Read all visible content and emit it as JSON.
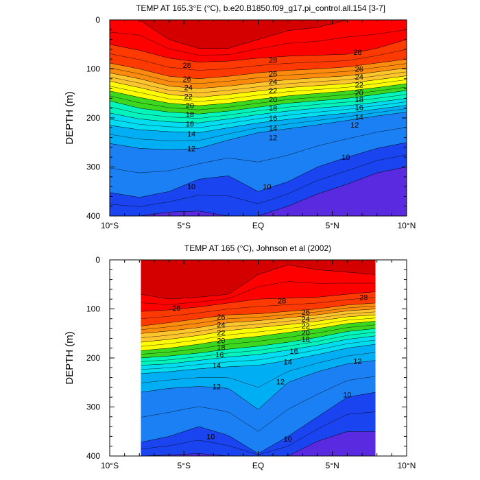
{
  "chart_data": [
    {
      "type": "contour",
      "title": "TEMP AT 165.3°E (°C), b.e20.B1850.f09_g17.pi_control.all.154 [3-7]",
      "ylabel": "DEPTH (m)",
      "xlabel": "",
      "xlim": [
        -10,
        10
      ],
      "ylim": [
        0,
        400
      ],
      "y_inverted": true,
      "x_ticks": [
        {
          "v": -10,
          "label": "10°S"
        },
        {
          "v": -5,
          "label": "5°S"
        },
        {
          "v": 0,
          "label": "EQ"
        },
        {
          "v": 5,
          "label": "5°N"
        },
        {
          "v": 10,
          "label": "10°N"
        }
      ],
      "y_ticks": [
        0,
        100,
        200,
        300,
        400
      ],
      "levels": [
        9,
        10,
        11,
        12,
        13,
        14,
        15,
        16,
        17,
        18,
        19,
        20,
        21,
        22,
        23,
        24,
        25,
        26,
        27,
        28,
        29
      ],
      "data_extent": [
        -10,
        10
      ],
      "isotherms": {
        "x": [
          -10,
          -8,
          -6,
          -4,
          -2,
          0,
          2,
          4,
          6,
          8,
          10
        ],
        "lines": [
          {
            "t": 29,
            "depth": [
              0,
              0,
              40,
              58,
              58,
              40,
              22,
              15,
              0,
              0,
              0
            ]
          },
          {
            "t": 28,
            "depth": [
              50,
              62,
              78,
              86,
              84,
              78,
              74,
              72,
              70,
              58,
              40
            ]
          },
          {
            "t": 26,
            "depth": [
              88,
              100,
              115,
              120,
              115,
              108,
              103,
              100,
              96,
              88,
              80
            ]
          },
          {
            "t": 24,
            "depth": [
              108,
              120,
              135,
              140,
              135,
              128,
              122,
              118,
              114,
              106,
              98
            ]
          },
          {
            "t": 22,
            "depth": [
              125,
              138,
              152,
              158,
              152,
              145,
              138,
              134,
              130,
              122,
              114
            ]
          },
          {
            "t": 20,
            "depth": [
              145,
              158,
              170,
              175,
              170,
              162,
              155,
              150,
              145,
              138,
              130
            ]
          },
          {
            "t": 18,
            "depth": [
              165,
              180,
              188,
              192,
              186,
              178,
              170,
              165,
              160,
              152,
              144
            ]
          },
          {
            "t": 16,
            "depth": [
              190,
              202,
              208,
              210,
              202,
              193,
              186,
              180,
              175,
              168,
              160
            ]
          },
          {
            "t": 14,
            "depth": [
              215,
              224,
              228,
              230,
              220,
              210,
              203,
              196,
              190,
              182,
              174
            ]
          },
          {
            "t": 12,
            "depth": [
              252,
              262,
              265,
              262,
              245,
              230,
              222,
              214,
              205,
              196,
              188
            ]
          },
          {
            "t": 10,
            "depth": [
              352,
              362,
              350,
              325,
              318,
              350,
              330,
              300,
              280,
              262,
              250
            ]
          },
          {
            "t": 9,
            "depth": [
              400,
              400,
              392,
              390,
              400,
              400,
              380,
              355,
              335,
              312,
              300
            ]
          }
        ]
      },
      "contour_labels": [
        {
          "x": -4.8,
          "d": 92,
          "text": "28"
        },
        {
          "x": 1.0,
          "d": 82,
          "text": "28"
        },
        {
          "x": 6.7,
          "d": 66,
          "text": "28"
        },
        {
          "x": -4.8,
          "d": 120,
          "text": "26"
        },
        {
          "x": 1.0,
          "d": 110,
          "text": "26"
        },
        {
          "x": 6.8,
          "d": 100,
          "text": "26"
        },
        {
          "x": -4.7,
          "d": 138,
          "text": "24"
        },
        {
          "x": 1.0,
          "d": 126,
          "text": "24"
        },
        {
          "x": 6.8,
          "d": 116,
          "text": "24"
        },
        {
          "x": -4.7,
          "d": 156,
          "text": "22"
        },
        {
          "x": 1.0,
          "d": 144,
          "text": "22"
        },
        {
          "x": 6.8,
          "d": 132,
          "text": "22"
        },
        {
          "x": -4.6,
          "d": 174,
          "text": "20"
        },
        {
          "x": 1.0,
          "d": 162,
          "text": "20"
        },
        {
          "x": 6.8,
          "d": 148,
          "text": "20"
        },
        {
          "x": -4.6,
          "d": 192,
          "text": "18"
        },
        {
          "x": 1.0,
          "d": 180,
          "text": "18"
        },
        {
          "x": 6.8,
          "d": 162,
          "text": "18"
        },
        {
          "x": -4.6,
          "d": 212,
          "text": "16"
        },
        {
          "x": 1.0,
          "d": 200,
          "text": "16"
        },
        {
          "x": 6.8,
          "d": 178,
          "text": "16"
        },
        {
          "x": -4.5,
          "d": 232,
          "text": "14"
        },
        {
          "x": 1.0,
          "d": 220,
          "text": "14"
        },
        {
          "x": 6.8,
          "d": 198,
          "text": "14"
        },
        {
          "x": -4.5,
          "d": 262,
          "text": "12"
        },
        {
          "x": 1.0,
          "d": 240,
          "text": "12"
        },
        {
          "x": 6.5,
          "d": 214,
          "text": "12"
        },
        {
          "x": -4.5,
          "d": 340,
          "text": "10"
        },
        {
          "x": 0.6,
          "d": 340,
          "text": "10"
        },
        {
          "x": 5.9,
          "d": 280,
          "text": "10"
        }
      ]
    },
    {
      "type": "contour",
      "title": "TEMP AT 165 (°C), Johnson et al (2002)",
      "ylabel": "DEPTH (m)",
      "xlabel": "",
      "xlim": [
        -10,
        10
      ],
      "ylim": [
        0,
        400
      ],
      "y_inverted": true,
      "x_ticks": [
        {
          "v": -10,
          "label": "10°S"
        },
        {
          "v": -5,
          "label": "5°S"
        },
        {
          "v": 0,
          "label": "EQ"
        },
        {
          "v": 5,
          "label": "5°N"
        },
        {
          "v": 10,
          "label": "10°N"
        }
      ],
      "y_ticks": [
        0,
        100,
        200,
        300,
        400
      ],
      "levels": [
        9,
        10,
        11,
        12,
        13,
        14,
        15,
        16,
        17,
        18,
        19,
        20,
        21,
        22,
        23,
        24,
        25,
        26,
        27,
        28,
        29
      ],
      "data_extent": [
        -7.9,
        7.9
      ],
      "isotherms": {
        "x": [
          -7.9,
          -6,
          -4,
          -2,
          0,
          2,
          4,
          6,
          7.9
        ],
        "lines": [
          {
            "t": 29,
            "depth": [
              70,
              80,
              76,
              70,
              30,
              10,
              20,
              25,
              30
            ]
          },
          {
            "t": 28,
            "depth": [
              105,
              102,
              96,
              88,
              80,
              78,
              76,
              70,
              65
            ]
          },
          {
            "t": 26,
            "depth": [
              135,
              128,
              120,
              112,
              110,
              105,
              100,
              92,
              88
            ]
          },
          {
            "t": 24,
            "depth": [
              150,
              145,
              138,
              128,
              124,
              118,
              112,
              104,
              100
            ]
          },
          {
            "t": 22,
            "depth": [
              168,
              162,
              154,
              144,
              138,
              132,
              125,
              116,
              112
            ]
          },
          {
            "t": 20,
            "depth": [
              185,
              180,
              172,
              162,
              156,
              148,
              140,
              130,
              125
            ]
          },
          {
            "t": 18,
            "depth": [
              200,
              196,
              190,
              182,
              176,
              168,
              158,
              146,
              140
            ]
          },
          {
            "t": 16,
            "depth": [
              215,
              212,
              205,
              198,
              193,
              184,
              174,
              162,
              155
            ]
          },
          {
            "t": 14,
            "depth": [
              232,
              228,
              222,
              218,
              215,
              205,
              193,
              180,
              172
            ]
          },
          {
            "t": 12,
            "depth": [
              270,
              262,
              258,
              262,
              305,
              250,
              228,
              212,
              205
            ]
          },
          {
            "t": 10,
            "depth": [
              372,
              360,
              340,
              358,
              395,
              360,
              320,
              280,
              270
            ]
          },
          {
            "t": 9,
            "depth": [
              400,
              398,
              395,
              400,
              400,
              400,
              370,
              350,
              350
            ]
          }
        ]
      },
      "contour_labels": [
        {
          "x": -5.5,
          "d": 98,
          "text": "28"
        },
        {
          "x": 1.6,
          "d": 83,
          "text": "28"
        },
        {
          "x": 7.1,
          "d": 76,
          "text": "28"
        },
        {
          "x": -2.5,
          "d": 116,
          "text": "26"
        },
        {
          "x": 3.2,
          "d": 106,
          "text": "26"
        },
        {
          "x": -2.5,
          "d": 132,
          "text": "24"
        },
        {
          "x": 3.2,
          "d": 120,
          "text": "24"
        },
        {
          "x": -2.5,
          "d": 148,
          "text": "22"
        },
        {
          "x": 3.2,
          "d": 134,
          "text": "22"
        },
        {
          "x": -2.5,
          "d": 164,
          "text": "20"
        },
        {
          "x": 3.2,
          "d": 148,
          "text": "20"
        },
        {
          "x": -2.5,
          "d": 178,
          "text": "18"
        },
        {
          "x": 3.2,
          "d": 162,
          "text": "18"
        },
        {
          "x": -2.6,
          "d": 193,
          "text": "16"
        },
        {
          "x": 2.4,
          "d": 186,
          "text": "16"
        },
        {
          "x": -2.8,
          "d": 215,
          "text": "14"
        },
        {
          "x": 2.0,
          "d": 208,
          "text": "14"
        },
        {
          "x": -2.8,
          "d": 258,
          "text": "12"
        },
        {
          "x": 1.5,
          "d": 248,
          "text": "12"
        },
        {
          "x": 6.7,
          "d": 206,
          "text": "12"
        },
        {
          "x": -3.2,
          "d": 360,
          "text": "10"
        },
        {
          "x": 2.0,
          "d": 365,
          "text": "10"
        },
        {
          "x": 6.0,
          "d": 275,
          "text": "10"
        }
      ]
    }
  ],
  "colors": {
    "29": "#d40000",
    "28": "#ff0000",
    "27": "#fe3a00",
    "26": "#fd6a00",
    "25": "#fd8b0d",
    "24": "#fea91c",
    "23": "#fec62c",
    "22": "#fee03c",
    "21": "#fdfd00",
    "20": "#b8f200",
    "19": "#3cd820",
    "18": "#00f088",
    "17": "#00f4bc",
    "16": "#00f0e0",
    "15": "#00dcf0",
    "14": "#00c2f2",
    "13": "#00aef4",
    "12": "#109af0",
    "11": "#1a80f4",
    "10": "#1e66f6",
    "9": "#1a44f0",
    "8": "#5a2ae0"
  }
}
